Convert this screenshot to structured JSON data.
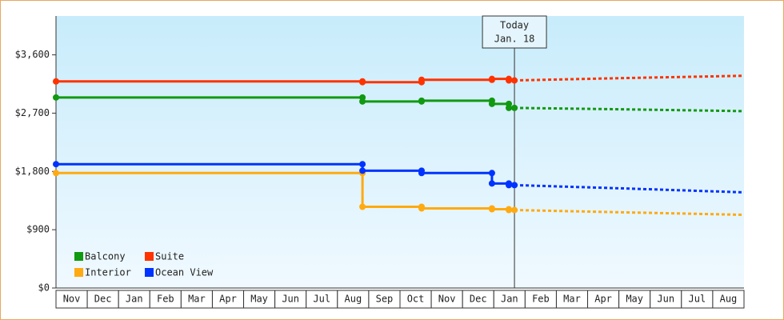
{
  "chart_data": {
    "type": "line",
    "categories": [
      "Nov",
      "Dec",
      "Jan",
      "Feb",
      "Mar",
      "Apr",
      "May",
      "Jun",
      "Jul",
      "Aug",
      "Sep",
      "Oct",
      "Nov",
      "Dec",
      "Jan",
      "Feb",
      "Mar",
      "Apr",
      "May",
      "Jun",
      "Jul",
      "Aug"
    ],
    "xlim": [
      0,
      22
    ],
    "ylim": [
      0,
      4200
    ],
    "yticks": [
      {
        "value": 0,
        "label": "$0"
      },
      {
        "value": 900,
        "label": "$900"
      },
      {
        "value": 1800,
        "label": "$1,800"
      },
      {
        "value": 2700,
        "label": "$2,700"
      },
      {
        "value": 3600,
        "label": "$3,600"
      }
    ],
    "annotation": {
      "x": 14.66,
      "lines": [
        "Today",
        "Jan. 18"
      ]
    },
    "legend": "lower left",
    "series": [
      {
        "name": "Balcony",
        "color": "#119911",
        "x": [
          0,
          9.8,
          9.8,
          11.69,
          11.69,
          13.94,
          13.94,
          14.48,
          14.48,
          14.66
        ],
        "values": [
          2942,
          2942,
          2880,
          2880,
          2892,
          2892,
          2843,
          2843,
          2781,
          2781
        ],
        "forecast_x": [
          14.66,
          18,
          22
        ],
        "forecast_values": [
          2781,
          2760,
          2731
        ]
      },
      {
        "name": "Suite",
        "color": "#ff3300",
        "x": [
          0,
          9.8,
          9.8,
          11.69,
          11.69,
          13.94,
          13.94,
          14.48,
          14.48,
          14.66
        ],
        "values": [
          3190,
          3190,
          3178,
          3178,
          3215,
          3215,
          3228,
          3228,
          3205,
          3205
        ],
        "forecast_x": [
          14.66,
          18,
          22
        ],
        "forecast_values": [
          3205,
          3240,
          3277
        ]
      },
      {
        "name": "Interior",
        "color": "#ffaa11",
        "x": [
          0,
          9.8,
          9.8,
          11.69,
          11.69,
          13.94,
          13.94,
          14.48,
          14.48,
          14.66
        ],
        "values": [
          1775,
          1775,
          1254,
          1254,
          1229,
          1229,
          1216,
          1216,
          1204,
          1204
        ],
        "forecast_x": [
          14.66,
          18,
          22
        ],
        "forecast_values": [
          1204,
          1170,
          1130
        ]
      },
      {
        "name": "Ocean View",
        "color": "#0033ff",
        "x": [
          0,
          9.8,
          9.8,
          11.69,
          11.69,
          13.94,
          13.94,
          14.48,
          14.48,
          14.66
        ],
        "values": [
          1912,
          1912,
          1812,
          1812,
          1775,
          1775,
          1614,
          1614,
          1589,
          1589
        ],
        "forecast_x": [
          14.66,
          18,
          22
        ],
        "forecast_values": [
          1589,
          1540,
          1477
        ]
      }
    ]
  }
}
